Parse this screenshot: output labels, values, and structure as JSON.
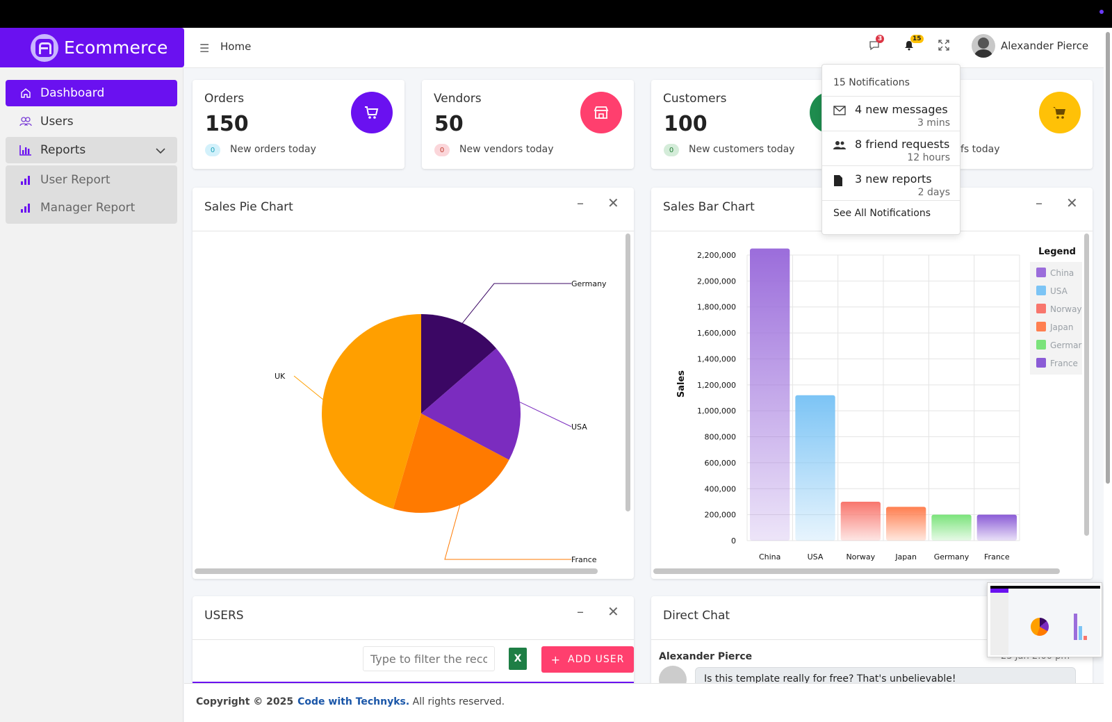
{
  "brand": {
    "name": "Ecommerce"
  },
  "sidebar": {
    "items": [
      {
        "label": "Dashboard",
        "icon": "home-icon"
      },
      {
        "label": "Users",
        "icon": "users-icon"
      },
      {
        "label": "Reports",
        "icon": "bar-chart-icon"
      }
    ],
    "sub_items": [
      {
        "label": "User Report",
        "icon": "signal-icon"
      },
      {
        "label": "Manager Report",
        "icon": "signal-icon"
      }
    ]
  },
  "header": {
    "breadcrumb": "Home",
    "messages_count": "3",
    "notifications_count": "15",
    "user_name": "Alexander Pierce"
  },
  "stats": [
    {
      "label": "Orders",
      "value": "150",
      "badge": "0",
      "sub": "New orders today",
      "color": "#6a11f0"
    },
    {
      "label": "Vendors",
      "value": "50",
      "badge": "0",
      "sub": "New vendors today",
      "color": "#ff3f6e"
    },
    {
      "label": "Customers",
      "value": "100",
      "badge": "0",
      "sub": "New customers today",
      "color": "#1e8c4e"
    },
    {
      "sub_partial": "fs today",
      "color": "#ffc107"
    }
  ],
  "notifications": {
    "header": "15 Notifications",
    "items": [
      {
        "text": "4 new messages",
        "time": "3 mins",
        "icon": "envelope-icon"
      },
      {
        "text": "8 friend requests",
        "time": "12 hours",
        "icon": "friends-icon"
      },
      {
        "text": "3 new reports",
        "time": "2 days",
        "icon": "file-icon"
      }
    ],
    "footer": "See All Notifications"
  },
  "pie_panel": {
    "title": "Sales Pie Chart"
  },
  "bar_panel": {
    "title": "Sales Bar Chart"
  },
  "users_panel": {
    "title": "USERS",
    "filter_placeholder": "Type to filter the records",
    "add_label": "ADD USER"
  },
  "chat_panel": {
    "title": "Direct Chat",
    "sender": "Alexander Pierce",
    "time": "23 Jan 2:00 pm",
    "message": "Is this template really for free? That's unbelievable!"
  },
  "footer": {
    "copyright": "Copyright © 2025",
    "link": "Code with Technyks.",
    "rights": "All rights reserved."
  },
  "chart_data": [
    {
      "type": "pie",
      "categories": [
        "Germany",
        "USA",
        "France",
        "UK"
      ],
      "values": [
        300000,
        420000,
        480000,
        1000000
      ],
      "colors": [
        "#3b0764",
        "#7b2cbf",
        "#ff7a00",
        "#ff9f00"
      ],
      "title": "Sales Pie Chart"
    },
    {
      "type": "bar",
      "categories": [
        "China",
        "USA",
        "Norway",
        "Japan",
        "Germany",
        "France"
      ],
      "values": [
        2250000,
        1120000,
        300000,
        260000,
        200000,
        200000
      ],
      "colors": [
        "#9b6ddb",
        "#7cc4f5",
        "#f8766d",
        "#ff7f50",
        "#7be37b",
        "#8b5cd6"
      ],
      "ylabel": "Sales",
      "ylim": [
        0,
        2200000
      ],
      "yticks": [
        "0",
        "200,000",
        "400,000",
        "600,000",
        "800,000",
        "1,000,000",
        "1,200,000",
        "1,400,000",
        "1,600,000",
        "1,800,000",
        "2,000,000",
        "2,200,000"
      ],
      "legend_title": "Legend",
      "legend_labels": [
        "China",
        "USA",
        "Norway",
        "Japan",
        "Germar",
        "France"
      ],
      "grid": true
    }
  ]
}
